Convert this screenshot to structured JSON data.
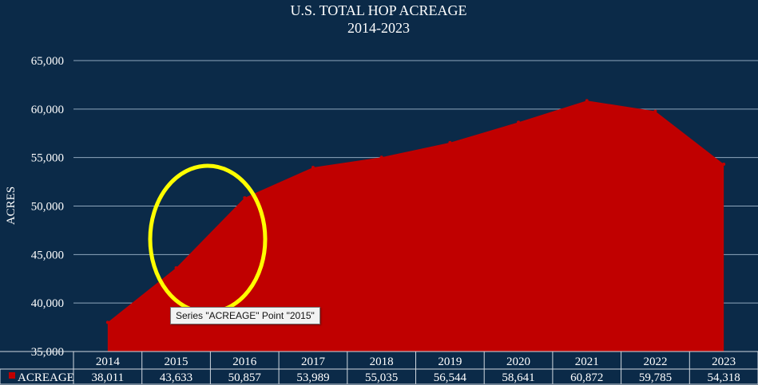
{
  "chart_data": {
    "type": "area",
    "title": "U.S. TOTAL HOP ACREAGE",
    "subtitle": "2014-2023",
    "ylabel": "ACRES",
    "xlabel": "",
    "ylim": [
      35000,
      65000
    ],
    "y_ticks": [
      "35,000",
      "40,000",
      "45,000",
      "50,000",
      "55,000",
      "60,000",
      "65,000"
    ],
    "y_tick_values": [
      35000,
      40000,
      45000,
      50000,
      55000,
      60000,
      65000
    ],
    "categories": [
      "2014",
      "2015",
      "2016",
      "2017",
      "2018",
      "2019",
      "2020",
      "2021",
      "2022",
      "2023"
    ],
    "series": [
      {
        "name": "ACREAGE",
        "values": [
          38011,
          43633,
          50857,
          53989,
          55035,
          56544,
          58641,
          60872,
          59785,
          54318
        ],
        "value_labels": [
          "38,011",
          "43,633",
          "50,857",
          "53,989",
          "55,035",
          "56,544",
          "58,641",
          "60,872",
          "59,785",
          "54,318"
        ],
        "color": "#c00000"
      }
    ],
    "grid": true,
    "legend": "data-table",
    "background_color": "#0b2a48",
    "annotation": {
      "type": "circle-highlight",
      "color": "#ffff00",
      "tooltip": "Series \"ACREAGE\" Point \"2015\""
    }
  }
}
